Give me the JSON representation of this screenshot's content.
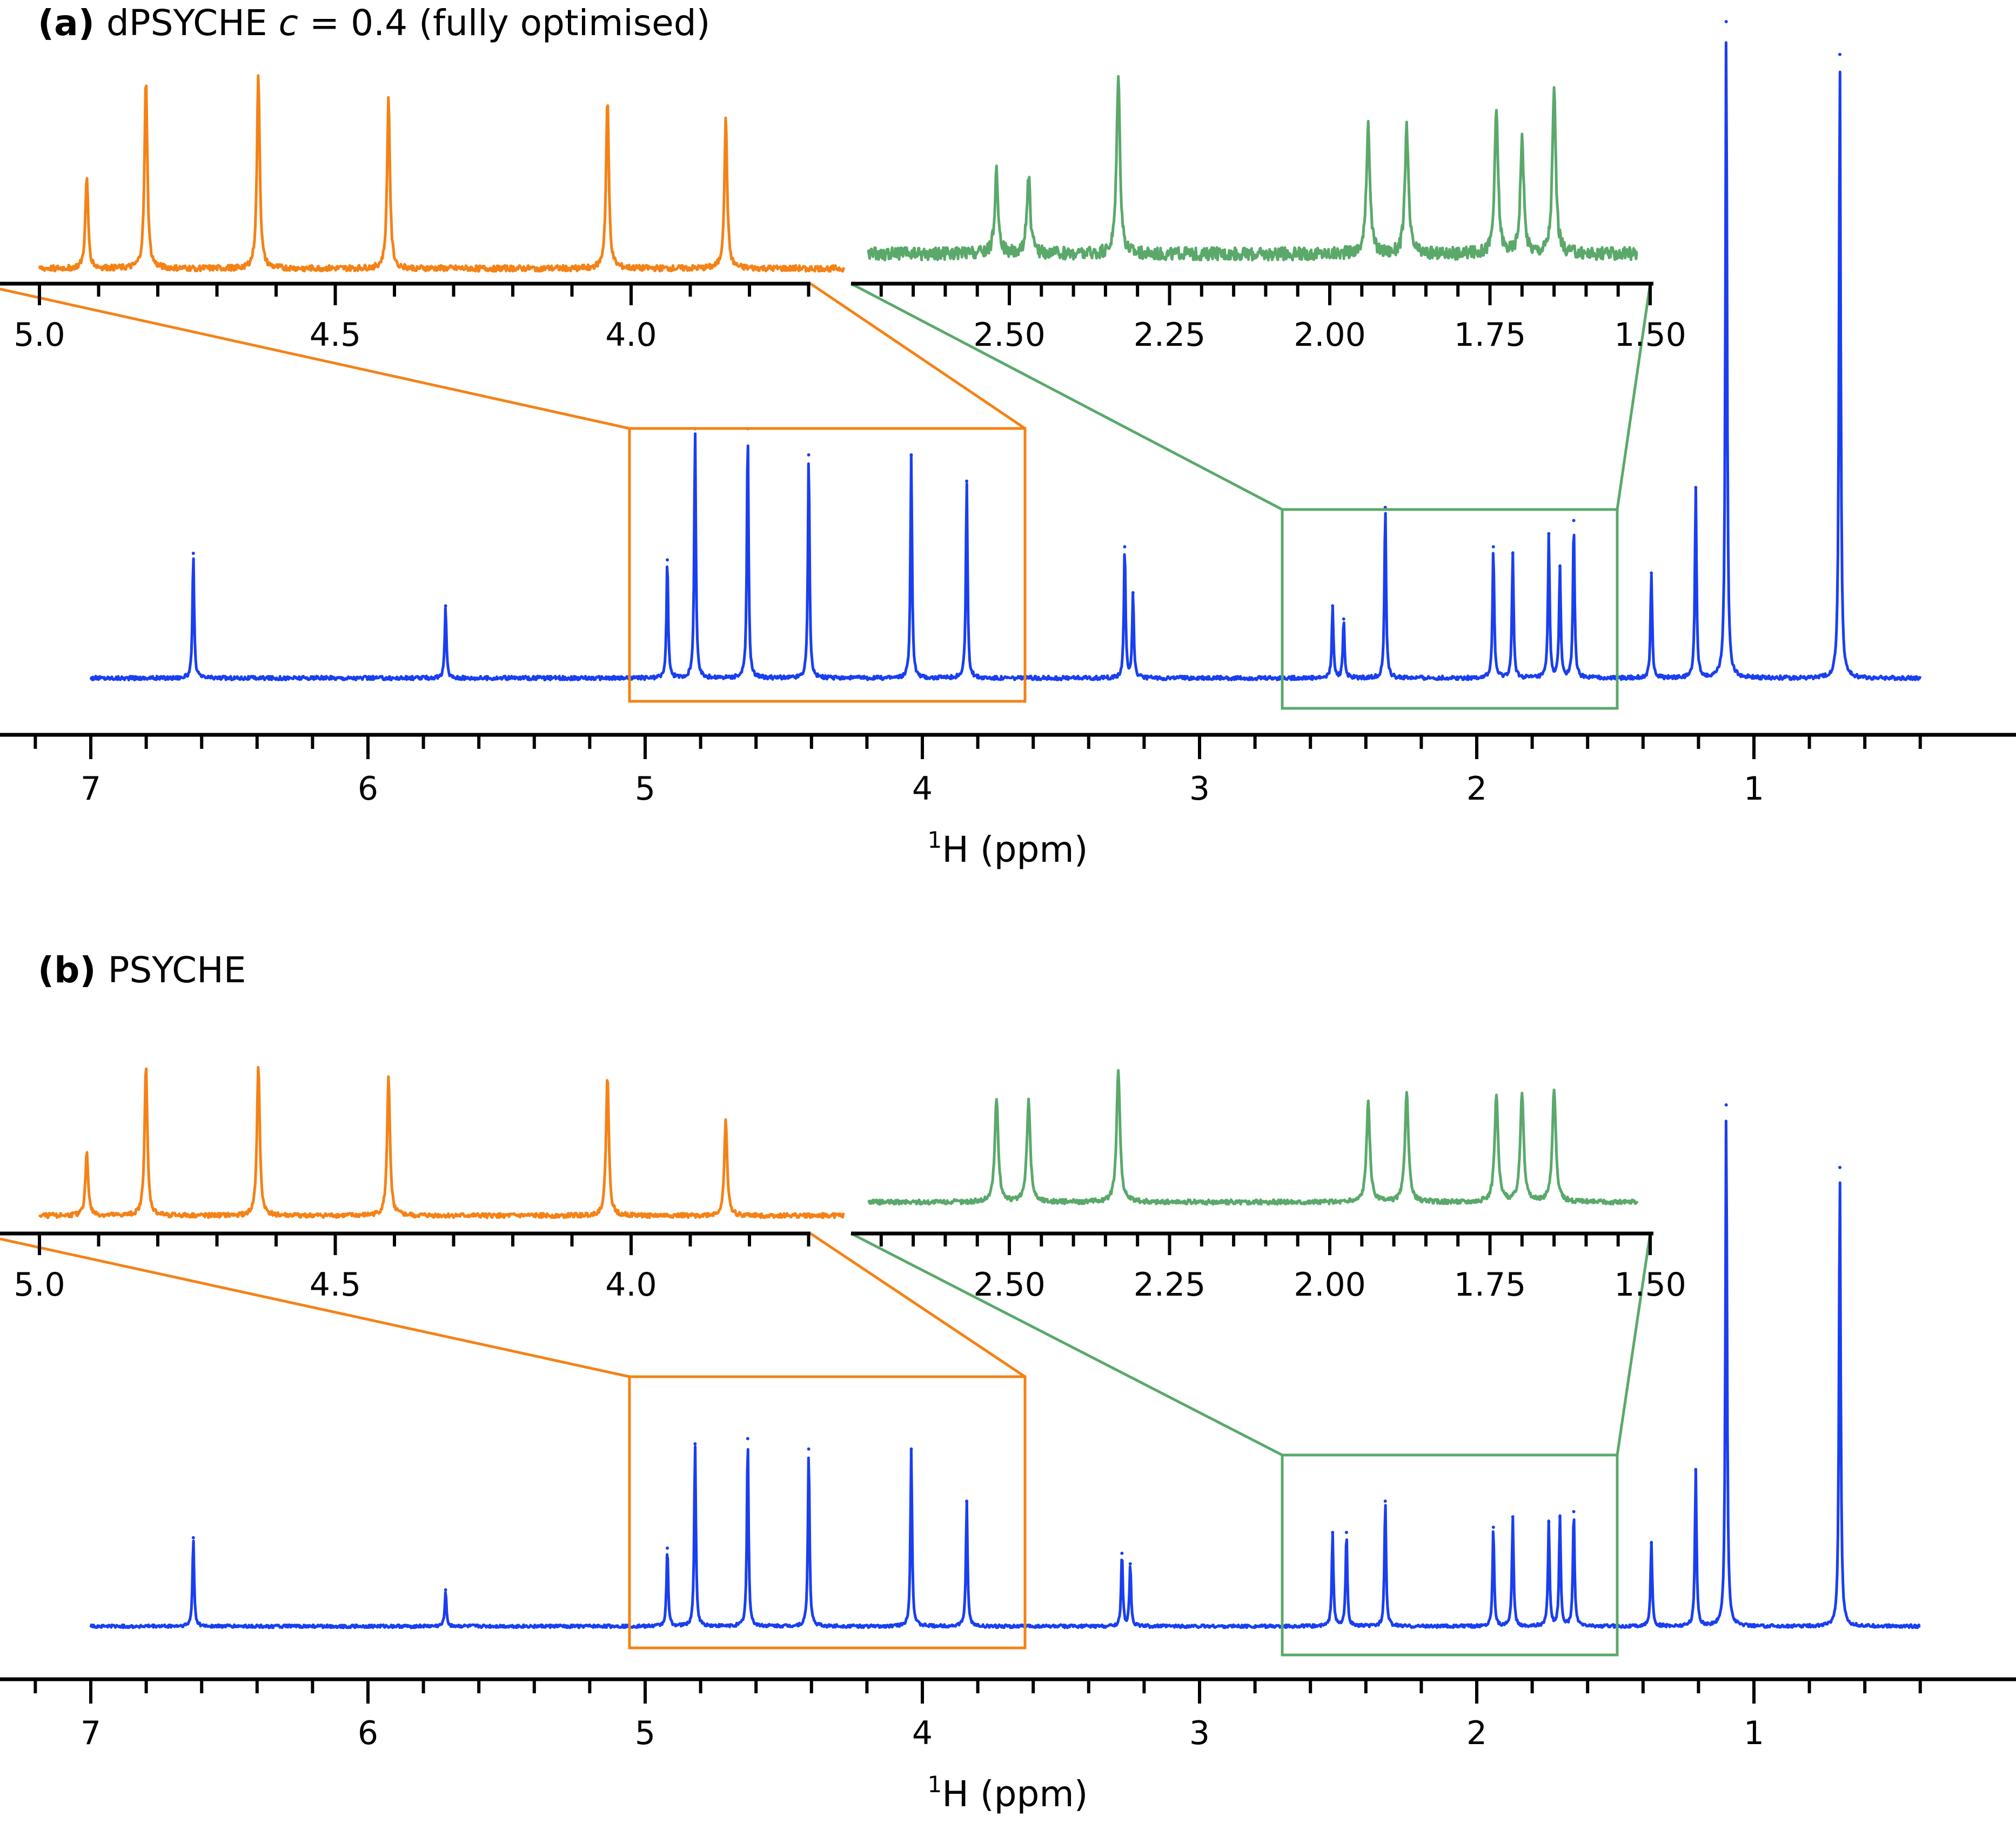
{
  "colors": {
    "main": "#1a3ff0",
    "orange_inset": "#f48216",
    "green_inset": "#5aa96b",
    "axis": "#000000"
  },
  "axis_title": {
    "sup": "1",
    "text": "H (ppm)"
  },
  "main_ticks": [
    "7",
    "6",
    "5",
    "4",
    "3",
    "2",
    "1"
  ],
  "orange_ticks": [
    "5.0",
    "4.5",
    "4.0"
  ],
  "green_ticks": [
    "2.50",
    "2.25",
    "2.00",
    "1.75",
    "1.50"
  ],
  "chart_data": [
    {
      "panel": "a",
      "type": "line",
      "label": "(a)",
      "title_pre": "dPSYCHE ",
      "title_var": "c",
      "title_post": " = 0.4 (fully optimised)",
      "xlabel": "1H (ppm)",
      "x_reversed": true,
      "xlim": [
        7.25,
        0.25
      ],
      "major_ticks": [
        7,
        6,
        5,
        4,
        3,
        2,
        1
      ],
      "minor_tick_step": 0.2,
      "series": [
        {
          "role": "main spectrum",
          "color": "#1a3ff0",
          "peaks": [
            {
              "ppm": 6.63,
              "height": 0.19
            },
            {
              "ppm": 5.72,
              "height": 0.11
            },
            {
              "ppm": 4.92,
              "height": 0.18
            },
            {
              "ppm": 4.82,
              "height": 0.38
            },
            {
              "ppm": 4.63,
              "height": 0.38
            },
            {
              "ppm": 4.41,
              "height": 0.34
            },
            {
              "ppm": 4.04,
              "height": 0.34
            },
            {
              "ppm": 3.84,
              "height": 0.3
            },
            {
              "ppm": 3.27,
              "height": 0.2
            },
            {
              "ppm": 3.24,
              "height": 0.13
            },
            {
              "ppm": 2.52,
              "height": 0.11
            },
            {
              "ppm": 2.48,
              "height": 0.09
            },
            {
              "ppm": 2.33,
              "height": 0.26
            },
            {
              "ppm": 1.94,
              "height": 0.2
            },
            {
              "ppm": 1.87,
              "height": 0.19
            },
            {
              "ppm": 1.74,
              "height": 0.22
            },
            {
              "ppm": 1.7,
              "height": 0.17
            },
            {
              "ppm": 1.65,
              "height": 0.24
            },
            {
              "ppm": 1.37,
              "height": 0.16
            },
            {
              "ppm": 1.21,
              "height": 0.29
            },
            {
              "ppm": 1.1,
              "height": 1.0
            },
            {
              "ppm": 0.69,
              "height": 0.95
            }
          ]
        }
      ],
      "insets": [
        {
          "color": "#f48216",
          "range": [
            5.08,
            3.65
          ],
          "ticks": [
            5.0,
            4.5,
            4.0
          ],
          "minor_tick_step": 0.1,
          "peaks": [
            {
              "ppm": 4.92,
              "height": 0.47
            },
            {
              "ppm": 4.82,
              "height": 0.98
            },
            {
              "ppm": 4.63,
              "height": 1.0
            },
            {
              "ppm": 4.41,
              "height": 0.88
            },
            {
              "ppm": 4.04,
              "height": 0.87
            },
            {
              "ppm": 3.84,
              "height": 0.77
            }
          ]
        },
        {
          "color": "#5aa96b",
          "range": [
            2.7,
            1.5
          ],
          "ticks": [
            2.5,
            2.25,
            2.0,
            1.75,
            1.5
          ],
          "minor_tick_step": 0.05,
          "peaks": [
            {
              "ppm": 2.52,
              "height": 0.45
            },
            {
              "ppm": 2.47,
              "height": 0.43
            },
            {
              "ppm": 2.33,
              "height": 0.98
            },
            {
              "ppm": 1.94,
              "height": 0.73
            },
            {
              "ppm": 1.88,
              "height": 0.71
            },
            {
              "ppm": 1.74,
              "height": 0.79
            },
            {
              "ppm": 1.7,
              "height": 0.63
            },
            {
              "ppm": 1.65,
              "height": 0.9
            }
          ]
        }
      ]
    },
    {
      "panel": "b",
      "type": "line",
      "label": "(b)",
      "title_pre": "PSYCHE",
      "title_var": "",
      "title_post": "",
      "xlabel": "1H (ppm)",
      "x_reversed": true,
      "xlim": [
        7.25,
        0.25
      ],
      "major_ticks": [
        7,
        6,
        5,
        4,
        3,
        2,
        1
      ],
      "minor_tick_step": 0.2,
      "series": [
        {
          "role": "main spectrum",
          "color": "#1a3ff0",
          "peaks": [
            {
              "ppm": 6.63,
              "height": 0.17
            },
            {
              "ppm": 5.72,
              "height": 0.07
            },
            {
              "ppm": 4.92,
              "height": 0.15
            },
            {
              "ppm": 4.82,
              "height": 0.35
            },
            {
              "ppm": 4.63,
              "height": 0.36
            },
            {
              "ppm": 4.41,
              "height": 0.34
            },
            {
              "ppm": 4.04,
              "height": 0.34
            },
            {
              "ppm": 3.84,
              "height": 0.24
            },
            {
              "ppm": 3.28,
              "height": 0.14
            },
            {
              "ppm": 3.25,
              "height": 0.12
            },
            {
              "ppm": 2.52,
              "height": 0.18
            },
            {
              "ppm": 2.47,
              "height": 0.18
            },
            {
              "ppm": 2.33,
              "height": 0.24
            },
            {
              "ppm": 1.94,
              "height": 0.19
            },
            {
              "ppm": 1.87,
              "height": 0.21
            },
            {
              "ppm": 1.74,
              "height": 0.2
            },
            {
              "ppm": 1.7,
              "height": 0.21
            },
            {
              "ppm": 1.65,
              "height": 0.22
            },
            {
              "ppm": 1.37,
              "height": 0.16
            },
            {
              "ppm": 1.21,
              "height": 0.3
            },
            {
              "ppm": 1.1,
              "height": 1.0
            },
            {
              "ppm": 0.69,
              "height": 0.88
            }
          ]
        }
      ],
      "insets": [
        {
          "color": "#f48216",
          "range": [
            5.08,
            3.65
          ],
          "ticks": [
            5.0,
            4.5,
            4.0
          ],
          "minor_tick_step": 0.1,
          "peaks": [
            {
              "ppm": 4.92,
              "height": 0.42
            },
            {
              "ppm": 4.82,
              "height": 0.99
            },
            {
              "ppm": 4.63,
              "height": 1.0
            },
            {
              "ppm": 4.41,
              "height": 0.93
            },
            {
              "ppm": 4.04,
              "height": 0.93
            },
            {
              "ppm": 3.84,
              "height": 0.64
            }
          ]
        },
        {
          "color": "#5aa96b",
          "range": [
            2.7,
            1.5
          ],
          "ticks": [
            2.5,
            2.25,
            2.0,
            1.75,
            1.5
          ],
          "minor_tick_step": 0.05,
          "peaks": [
            {
              "ppm": 2.52,
              "height": 0.78
            },
            {
              "ppm": 2.47,
              "height": 0.76
            },
            {
              "ppm": 2.33,
              "height": 1.0
            },
            {
              "ppm": 1.94,
              "height": 0.75
            },
            {
              "ppm": 1.88,
              "height": 0.84
            },
            {
              "ppm": 1.74,
              "height": 0.81
            },
            {
              "ppm": 1.7,
              "height": 0.83
            },
            {
              "ppm": 1.65,
              "height": 0.86
            }
          ]
        }
      ]
    }
  ]
}
